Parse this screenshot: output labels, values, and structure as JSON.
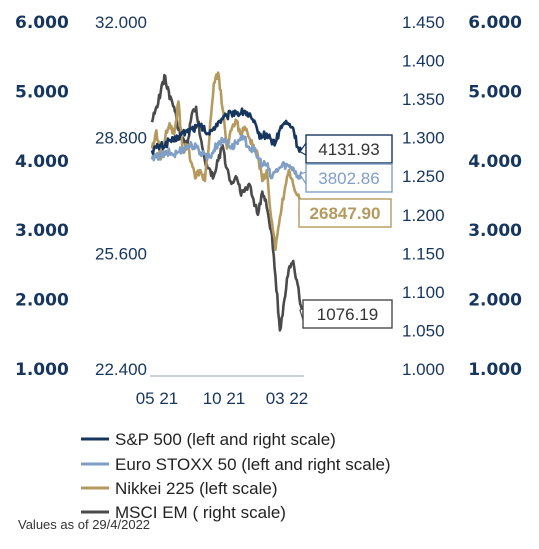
{
  "chart_data": {
    "type": "line",
    "x_ticks": [
      "05 21",
      "10 21",
      "03 22"
    ],
    "axes": {
      "outer_left": {
        "ticks": [
          "6.000",
          "5.000",
          "4.000",
          "3.000",
          "2.000",
          "1.000"
        ],
        "range": [
          1000,
          6000
        ]
      },
      "inner_left": {
        "ticks": [
          "32.000",
          "28.800",
          "25.600",
          "22.400"
        ],
        "range": [
          22400,
          32000
        ]
      },
      "inner_right": {
        "ticks": [
          "1.450",
          "1.400",
          "1.350",
          "1.300",
          "1.250",
          "1.200",
          "1.150",
          "1.100",
          "1.050",
          "1.000"
        ],
        "range": [
          1000,
          1450
        ]
      },
      "outer_right": {
        "ticks": [
          "6.000",
          "5.000",
          "4.000",
          "3.000",
          "2.000",
          "1.000"
        ],
        "range": [
          1000,
          6000
        ]
      }
    },
    "series": [
      {
        "name": "S&P 500 (left and right scale)",
        "axis": "outer_left",
        "color": "#17365d",
        "last_label": "4131.93",
        "values": [
          4150,
          4190,
          4210,
          4230,
          4300,
          4280,
          4350,
          4400,
          4420,
          4460,
          4480,
          4500,
          4430,
          4380,
          4480,
          4560,
          4600,
          4640,
          4690,
          4710,
          4680,
          4720,
          4650,
          4560,
          4400,
          4350,
          4390,
          4300,
          4260,
          4450,
          4550,
          4520,
          4470,
          4200,
          4131.93
        ]
      },
      {
        "name": "Euro STOXX 50 (left and right scale)",
        "axis": "outer_left",
        "color": "#7f9fc6",
        "last_label": "3802.86",
        "values": [
          4020,
          4050,
          4080,
          4090,
          4120,
          4090,
          4130,
          4180,
          4200,
          4230,
          4190,
          4120,
          4100,
          4050,
          4150,
          4260,
          4280,
          4300,
          4180,
          4260,
          4300,
          4310,
          4200,
          4150,
          4050,
          3950,
          3950,
          3750,
          3850,
          3900,
          3950,
          3920,
          3900,
          3780,
          3802.86
        ]
      },
      {
        "name": "Nikkei 225 (left scale)",
        "axis": "inner_left",
        "color": "#b49a5e",
        "last_label": "26847.90",
        "values": [
          28500,
          29000,
          28200,
          28800,
          29200,
          28900,
          29800,
          28400,
          28600,
          28100,
          27700,
          27900,
          27600,
          28800,
          30300,
          30600,
          29600,
          28500,
          29000,
          29300,
          28900,
          29100,
          28800,
          28600,
          28300,
          27600,
          27900,
          26600,
          25700,
          26600,
          27300,
          27900,
          27500,
          27200,
          26847.9
        ]
      },
      {
        "name": "MSCI EM ( right scale)",
        "axis": "inner_right",
        "color": "#4a4a4a",
        "last_label": "1076.19",
        "values": [
          1320,
          1340,
          1360,
          1380,
          1350,
          1340,
          1310,
          1300,
          1290,
          1330,
          1340,
          1300,
          1270,
          1260,
          1250,
          1270,
          1290,
          1260,
          1240,
          1250,
          1230,
          1230,
          1240,
          1220,
          1200,
          1230,
          1210,
          1180,
          1120,
          1050,
          1090,
          1130,
          1140,
          1110,
          1076.19
        ]
      }
    ],
    "legend_position": "bottom"
  },
  "footnote": "Values as of 29/4/2022"
}
